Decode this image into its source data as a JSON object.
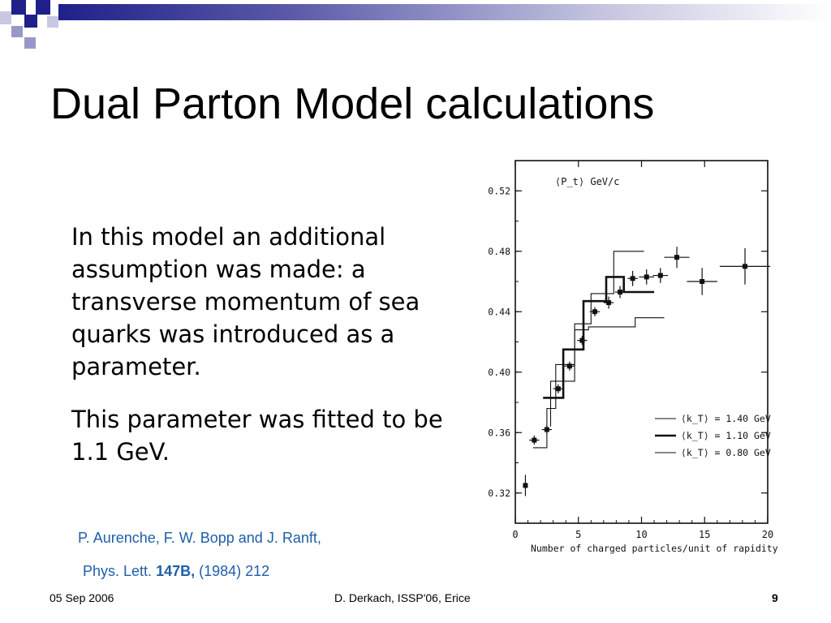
{
  "slide": {
    "title": "Dual Parton Model calculations",
    "paragraphs": [
      "In this model an additional assumption was made: a transverse momentum of sea quarks was introduced as a parameter.",
      "This parameter was fitted to be 1.1 GeV."
    ],
    "citation": {
      "line1": "P. Aurenche, F. W. Bopp and J. Ranft,",
      "journal": "Phys. Lett.",
      "volume": "147B,",
      "rest": "(1984) 212"
    },
    "footer": {
      "date": "05 Sep 2006",
      "center": "D. Derkach, ISSP'06, Erice",
      "page": "9"
    },
    "colors": {
      "decoration_dark": "#20208a",
      "decoration_light": "#9898c8",
      "citation": "#1f5ea8"
    }
  },
  "chart_data": {
    "type": "line",
    "title": "⟨P_t⟩ GeV/c",
    "xlabel": "Number of charged particles/unit of rapidity",
    "ylabel": "",
    "xlim": [
      0,
      20
    ],
    "ylim": [
      0.3,
      0.54
    ],
    "xticks": [
      0,
      5,
      10,
      15,
      20
    ],
    "yticks": [
      0.32,
      0.36,
      0.4,
      0.44,
      0.48,
      0.52
    ],
    "ytick_labels": [
      "0.32",
      "0.36",
      "0.40",
      "0.44",
      "0.48",
      "0.52"
    ],
    "legend_position": "bottom-right",
    "points": {
      "x": [
        0.8,
        1.5,
        2.5,
        3.4,
        4.3,
        5.3,
        6.3,
        7.4,
        8.3,
        9.3,
        10.4,
        11.5,
        12.8,
        14.8,
        18.2
      ],
      "y": [
        0.325,
        0.355,
        0.362,
        0.389,
        0.404,
        0.421,
        0.44,
        0.446,
        0.453,
        0.462,
        0.463,
        0.464,
        0.476,
        0.46,
        0.47
      ],
      "xerr": [
        0,
        0.4,
        0.4,
        0.4,
        0.4,
        0.4,
        0.4,
        0.4,
        0.4,
        0.4,
        0.6,
        0.6,
        1.0,
        1.2,
        2.0
      ],
      "yerr": [
        0.007,
        0.003,
        0.003,
        0.003,
        0.003,
        0.003,
        0.003,
        0.004,
        0.004,
        0.005,
        0.005,
        0.005,
        0.007,
        0.009,
        0.012
      ]
    },
    "series": [
      {
        "name": "⟨k_T⟩ = 1.40 GeV",
        "style": "thin",
        "x": [
          2.8,
          2.8,
          4.7,
          4.7,
          6.0,
          6.0,
          7.8,
          7.8,
          10.2
        ],
        "y": [
          0.364,
          0.394,
          0.394,
          0.432,
          0.432,
          0.452,
          0.452,
          0.48,
          0.48
        ]
      },
      {
        "name": "⟨k_T⟩ = 1.10 GeV",
        "style": "thick",
        "x": [
          2.2,
          2.2,
          3.8,
          3.8,
          5.4,
          5.4,
          7.2,
          7.2,
          8.6,
          8.6,
          11.0
        ],
        "y": [
          0.383,
          0.383,
          0.383,
          0.415,
          0.415,
          0.447,
          0.447,
          0.463,
          0.463,
          0.453,
          0.453
        ]
      },
      {
        "name": "⟨k_T⟩ = 0.80 GeV",
        "style": "thin",
        "x": [
          1.4,
          1.4,
          2.5,
          2.5,
          3.2,
          3.2,
          4.7,
          4.7,
          5.8,
          5.8,
          9.5,
          9.5,
          11.8
        ],
        "y": [
          0.35,
          0.35,
          0.35,
          0.376,
          0.376,
          0.405,
          0.405,
          0.428,
          0.428,
          0.43,
          0.43,
          0.436,
          0.436
        ]
      }
    ],
    "frame": "full",
    "grid": false
  }
}
